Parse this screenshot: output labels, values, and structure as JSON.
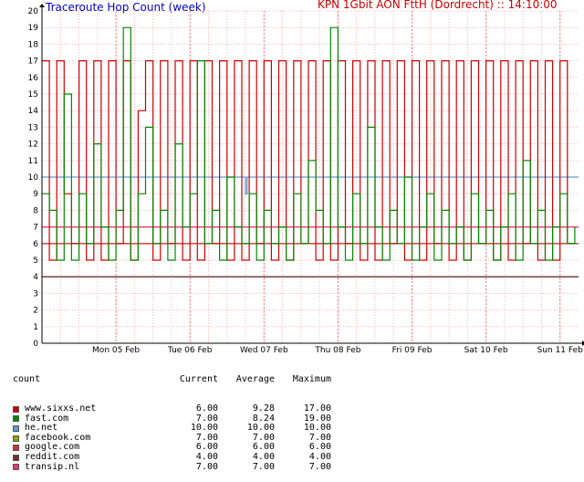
{
  "title": "Traceroute Hop Count (week)",
  "subtitle": "KPN 1Gbit AON FttH (Dordrecht) ::  14:10:00",
  "legend_header": {
    "count": "count",
    "current": "Current",
    "average": "Average",
    "maximum": "Maximum"
  },
  "colors": {
    "title": "#0000cc",
    "subtitle": "#cc0000",
    "grid": "#ffb3b3",
    "axis": "#000000"
  },
  "chart_data": {
    "type": "line",
    "title": "Traceroute Hop Count (week)",
    "ylim": [
      0,
      20
    ],
    "yticks": [
      0,
      1,
      2,
      3,
      4,
      5,
      6,
      7,
      8,
      9,
      10,
      11,
      12,
      13,
      14,
      15,
      16,
      17,
      18,
      19,
      20
    ],
    "xlim": [
      0,
      7.25
    ],
    "xticks": [
      {
        "label": "Mon 05 Feb",
        "x": 1
      },
      {
        "label": "Tue 06 Feb",
        "x": 2
      },
      {
        "label": "Wed 07 Feb",
        "x": 3
      },
      {
        "label": "Thu 08 Feb",
        "x": 4
      },
      {
        "label": "Fri 09 Feb",
        "x": 5
      },
      {
        "label": "Sat 10 Feb",
        "x": 6
      },
      {
        "label": "Sun 11 Feb",
        "x": 7
      }
    ],
    "grid": true,
    "series": [
      {
        "name": "www.sixxs.net",
        "color": "#cc0000",
        "current": "6.00",
        "average": "9.28",
        "maximum": "17.00",
        "style": "noisy",
        "x": [
          0,
          0.1,
          0.2,
          0.3,
          0.4,
          0.5,
          0.6,
          0.7,
          0.8,
          0.9,
          1,
          1.1,
          1.2,
          1.3,
          1.4,
          1.5,
          1.6,
          1.7,
          1.8,
          1.9,
          2,
          2.1,
          2.2,
          2.3,
          2.4,
          2.5,
          2.6,
          2.7,
          2.8,
          2.9,
          3,
          3.1,
          3.2,
          3.3,
          3.4,
          3.5,
          3.6,
          3.7,
          3.8,
          3.9,
          4,
          4.1,
          4.2,
          4.3,
          4.4,
          4.5,
          4.6,
          4.7,
          4.8,
          4.9,
          5,
          5.1,
          5.2,
          5.3,
          5.4,
          5.5,
          5.6,
          5.7,
          5.8,
          5.9,
          6,
          6.1,
          6.2,
          6.3,
          6.4,
          6.5,
          6.6,
          6.7,
          6.8,
          6.9,
          7,
          7.1,
          7.2
        ],
        "y": [
          17,
          5,
          17,
          9,
          6,
          17,
          5,
          17,
          5,
          17,
          6,
          17,
          5,
          14,
          17,
          5,
          17,
          6,
          17,
          5,
          17,
          5,
          17,
          6,
          17,
          5,
          17,
          5,
          17,
          6,
          17,
          5,
          17,
          5,
          17,
          6,
          17,
          5,
          17,
          5,
          17,
          6,
          17,
          5,
          17,
          5,
          17,
          6,
          17,
          5,
          17,
          5,
          17,
          6,
          17,
          5,
          17,
          5,
          17,
          6,
          17,
          5,
          17,
          5,
          17,
          6,
          17,
          5,
          17,
          5,
          17,
          6,
          6
        ]
      },
      {
        "name": "fast.com",
        "color": "#008800",
        "current": "7.00",
        "average": "8.24",
        "maximum": "19.00",
        "style": "noisy",
        "x": [
          0,
          0.1,
          0.2,
          0.3,
          0.4,
          0.5,
          0.6,
          0.7,
          0.8,
          0.9,
          1,
          1.1,
          1.2,
          1.3,
          1.4,
          1.5,
          1.6,
          1.7,
          1.8,
          1.9,
          2,
          2.1,
          2.2,
          2.3,
          2.4,
          2.5,
          2.6,
          2.7,
          2.8,
          2.9,
          3,
          3.1,
          3.2,
          3.3,
          3.4,
          3.5,
          3.6,
          3.7,
          3.8,
          3.9,
          4,
          4.1,
          4.2,
          4.3,
          4.4,
          4.5,
          4.6,
          4.7,
          4.8,
          4.9,
          5,
          5.1,
          5.2,
          5.3,
          5.4,
          5.5,
          5.6,
          5.7,
          5.8,
          5.9,
          6,
          6.1,
          6.2,
          6.3,
          6.4,
          6.5,
          6.6,
          6.7,
          6.8,
          6.9,
          7,
          7.1,
          7.2
        ],
        "y": [
          9,
          8,
          5,
          15,
          5,
          9,
          6,
          12,
          7,
          5,
          8,
          19,
          5,
          9,
          13,
          6,
          8,
          5,
          12,
          7,
          9,
          17,
          6,
          8,
          5,
          10,
          7,
          6,
          9,
          5,
          8,
          6,
          7,
          5,
          9,
          6,
          11,
          8,
          6,
          19,
          7,
          5,
          9,
          6,
          13,
          7,
          5,
          8,
          6,
          10,
          5,
          7,
          9,
          5,
          8,
          6,
          7,
          5,
          9,
          6,
          8,
          5,
          7,
          9,
          5,
          11,
          6,
          8,
          5,
          7,
          9,
          6,
          7
        ]
      },
      {
        "name": "he.net",
        "color": "#6699cc",
        "current": "10.00",
        "average": "10.00",
        "maximum": "10.00",
        "style": "flat",
        "x": [
          0,
          2.75,
          2.75,
          2.77,
          2.77,
          7.25
        ],
        "y": [
          10,
          10,
          9,
          9,
          10,
          10
        ]
      },
      {
        "name": "facebook.com",
        "color": "#88aa00",
        "current": "7.00",
        "average": "7.00",
        "maximum": "7.00",
        "style": "flat",
        "x": [
          0,
          7.25
        ],
        "y": [
          7,
          7
        ]
      },
      {
        "name": "google.com",
        "color": "#cc3333",
        "current": "6.00",
        "average": "6.00",
        "maximum": "6.00",
        "style": "flat",
        "x": [
          0,
          7.25
        ],
        "y": [
          6,
          6
        ]
      },
      {
        "name": "reddit.com",
        "color": "#663333",
        "current": "4.00",
        "average": "4.00",
        "maximum": "4.00",
        "style": "flat",
        "x": [
          0,
          7.25
        ],
        "y": [
          4,
          4
        ]
      },
      {
        "name": "transip.nl",
        "color": "#ee3377",
        "current": "7.00",
        "average": "7.00",
        "maximum": "7.00",
        "style": "flat",
        "x": [
          0,
          7.25
        ],
        "y": [
          7,
          7
        ]
      }
    ]
  }
}
